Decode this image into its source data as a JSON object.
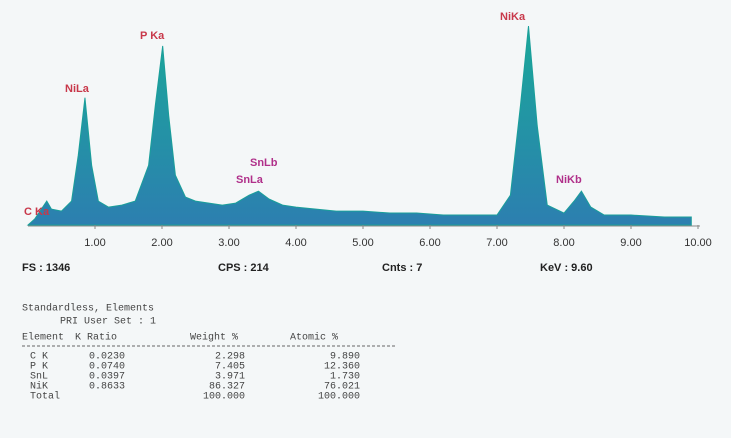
{
  "chart_data": {
    "type": "area",
    "color": "#1a9f9a",
    "x": [
      0.0,
      0.1,
      0.2,
      0.28,
      0.35,
      0.5,
      0.65,
      0.75,
      0.85,
      0.95,
      1.05,
      1.2,
      1.4,
      1.6,
      1.8,
      1.9,
      2.01,
      2.1,
      2.2,
      2.35,
      2.5,
      2.7,
      2.9,
      3.1,
      3.3,
      3.44,
      3.6,
      3.8,
      4.0,
      4.3,
      4.6,
      5.0,
      5.4,
      5.8,
      6.2,
      6.6,
      7.0,
      7.2,
      7.35,
      7.47,
      7.6,
      7.75,
      8.0,
      8.15,
      8.26,
      8.4,
      8.6,
      9.0,
      9.5,
      9.9
    ],
    "values": [
      0,
      3,
      8,
      12,
      8,
      7,
      12,
      35,
      64,
      30,
      12,
      9,
      10,
      12,
      30,
      60,
      90,
      55,
      25,
      14,
      12,
      11,
      10,
      11,
      15,
      17,
      13,
      10,
      9,
      8,
      7,
      7,
      6,
      6,
      5,
      5,
      5,
      15,
      60,
      100,
      50,
      10,
      6,
      12,
      17,
      9,
      5,
      5,
      4,
      4
    ],
    "xlim": [
      0,
      10
    ],
    "ylim": [
      0,
      100
    ],
    "xticks": [
      {
        "value": 1,
        "label": "1.00"
      },
      {
        "value": 2,
        "label": "2.00"
      },
      {
        "value": 3,
        "label": "3.00"
      },
      {
        "value": 4,
        "label": "4.00"
      },
      {
        "value": 5,
        "label": "5.00"
      },
      {
        "value": 6,
        "label": "6.00"
      },
      {
        "value": 7,
        "label": "7.00"
      },
      {
        "value": 8,
        "label": "8.00"
      },
      {
        "value": 9,
        "label": "9.00"
      },
      {
        "value": 10,
        "label": "10.00"
      }
    ],
    "annotations": [
      {
        "text": "C Ka",
        "color": "#c8384a"
      },
      {
        "text": "NiLa",
        "color": "#c8384a"
      },
      {
        "text": "P Ka",
        "color": "#c8384a"
      },
      {
        "text": "SnLb",
        "color": "#b0308a"
      },
      {
        "text": "SnLa",
        "color": "#b0308a"
      },
      {
        "text": "NiKa",
        "color": "#c8384a"
      },
      {
        "text": "NiKb",
        "color": "#b0308a"
      }
    ],
    "footer": [
      "FS : 1346",
      "CPS : 214",
      "Cnts : 7",
      "KeV : 9.60"
    ]
  },
  "report": {
    "title": "Standardless, Elements",
    "subtitle": "PRI User Set : 1",
    "columns": [
      "Element",
      "K Ratio",
      "Weight %",
      "Atomic %"
    ],
    "rows": [
      [
        "C K",
        "0.0230",
        "2.298",
        "9.890"
      ],
      [
        "P K",
        "0.0740",
        "7.405",
        "12.360"
      ],
      [
        "SnL",
        "0.0397",
        "3.971",
        "1.730"
      ],
      [
        "NiK",
        "0.8633",
        "86.327",
        "76.021"
      ],
      [
        "Total",
        "",
        "100.000",
        "100.000"
      ]
    ]
  }
}
